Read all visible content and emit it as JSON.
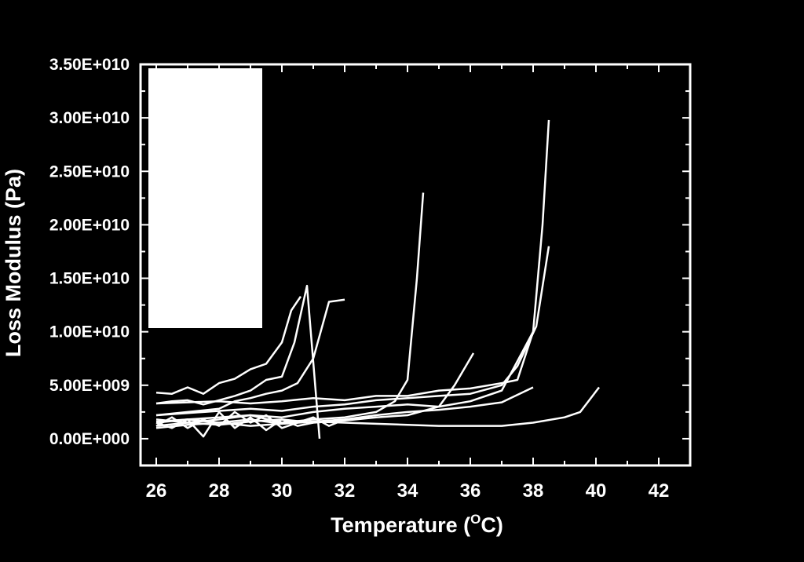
{
  "chart_data": {
    "type": "line",
    "title": "",
    "xlabel": "Temperature (",
    "xlabel_sup": "O",
    "xlabel_tail": "C)",
    "ylabel": "Loss Modulus (Pa)",
    "xlim": [
      25.5,
      43
    ],
    "ylim": [
      -2500000000,
      35000000000
    ],
    "xticks": [
      26,
      28,
      30,
      32,
      34,
      36,
      38,
      40,
      42
    ],
    "xtick_labels": [
      "26",
      "28",
      "30",
      "32",
      "34",
      "36",
      "38",
      "40",
      "42"
    ],
    "yticks": [
      0,
      5000000000,
      10000000000,
      15000000000,
      20000000000,
      25000000000,
      30000000000,
      35000000000
    ],
    "ytick_labels": [
      "0.00E+000",
      "5.00E+009",
      "1.00E+010",
      "1.50E+010",
      "2.00E+010",
      "2.50E+010",
      "3.00E+010",
      "3.50E+010"
    ],
    "grid": false,
    "legend": "top-left (blank box)",
    "colors": {
      "background": "#000000",
      "foreground": "#ffffff",
      "line": "#ffffff"
    },
    "series": [
      {
        "x": [
          26,
          26.5,
          27,
          27.5,
          28,
          28.5,
          29,
          29.5,
          30,
          30.3,
          30.6
        ],
        "y": [
          4300000000.0,
          4200000000.0,
          4800000000.0,
          4200000000.0,
          5200000000.0,
          5600000000.0,
          6500000000.0,
          7000000000.0,
          9000000000.0,
          12000000000.0,
          13300000000.0
        ]
      },
      {
        "x": [
          26,
          26.5,
          27,
          27.5,
          28,
          28.5,
          29,
          29.5,
          30,
          30.4,
          30.8,
          31.2
        ],
        "y": [
          3300000000.0,
          3500000000.0,
          3600000000.0,
          3200000000.0,
          3600000000.0,
          4000000000.0,
          4500000000.0,
          5500000000.0,
          5800000000.0,
          9000000000.0,
          14300000000.0,
          0.0
        ]
      },
      {
        "x": [
          26,
          27,
          28,
          28.5,
          29,
          29.5,
          30,
          30.5,
          31,
          31.5,
          32
        ],
        "y": [
          2200000000.0,
          2500000000.0,
          2800000000.0,
          3500000000.0,
          3800000000.0,
          4200000000.0,
          4500000000.0,
          5200000000.0,
          7500000000.0,
          12800000000.0,
          13000000000.0
        ]
      },
      {
        "x": [
          26,
          27,
          28,
          29,
          30,
          31,
          32,
          33,
          33.6,
          34,
          34.3,
          34.5
        ],
        "y": [
          1500000000.0,
          1800000000.0,
          2000000000.0,
          2200000000.0,
          1500000000.0,
          1800000000.0,
          2000000000.0,
          2500000000.0,
          3500000000.0,
          5500000000.0,
          15000000000.0,
          23000000000.0
        ]
      },
      {
        "x": [
          26,
          27,
          28,
          29,
          30,
          31,
          32,
          33,
          34,
          35,
          36,
          37,
          37.5,
          38,
          38.3,
          38.5
        ],
        "y": [
          3300000000.0,
          3400000000.0,
          3500000000.0,
          3300000000.0,
          3500000000.0,
          3800000000.0,
          3600000000.0,
          4000000000.0,
          4000000000.0,
          4500000000.0,
          4700000000.0,
          5200000000.0,
          5500000000.0,
          10000000000.0,
          20000000000.0,
          29800000000.0
        ]
      },
      {
        "x": [
          26,
          27,
          28,
          29,
          30,
          31,
          32,
          33,
          34,
          35,
          36,
          37,
          37.5,
          38.1,
          38.5
        ],
        "y": [
          2200000000.0,
          2400000000.0,
          2600000000.0,
          2800000000.0,
          2600000000.0,
          3000000000.0,
          3200000000.0,
          3600000000.0,
          3800000000.0,
          4000000000.0,
          4200000000.0,
          5000000000.0,
          6800000000.0,
          10500000000.0,
          18000000000.0
        ]
      },
      {
        "x": [
          26,
          27,
          28,
          29,
          30,
          31,
          32,
          33,
          34,
          35,
          36,
          37,
          38
        ],
        "y": [
          1200000000.0,
          1500000000.0,
          1800000000.0,
          2200000000.0,
          2000000000.0,
          2500000000.0,
          2800000000.0,
          3000000000.0,
          3200000000.0,
          3000000000.0,
          3500000000.0,
          4500000000.0,
          10000000000.0
        ]
      },
      {
        "x": [
          26,
          27,
          28,
          29,
          30,
          31,
          32,
          33,
          34,
          35,
          36,
          37,
          38
        ],
        "y": [
          1000000000.0,
          1300000000.0,
          1500000000.0,
          1200000000.0,
          1400000000.0,
          1600000000.0,
          1800000000.0,
          2200000000.0,
          2500000000.0,
          2700000000.0,
          3000000000.0,
          3400000000.0,
          4800000000.0
        ]
      },
      {
        "x": [
          26,
          27,
          28,
          29,
          30,
          31,
          32,
          33,
          34,
          35,
          35.5,
          36.1
        ],
        "y": [
          1800000000.0,
          1500000000.0,
          1300000000.0,
          1600000000.0,
          1800000000.0,
          1500000000.0,
          1700000000.0,
          2000000000.0,
          2200000000.0,
          3000000000.0,
          5000000000.0,
          8000000000.0
        ]
      },
      {
        "x": [
          26,
          27,
          28,
          29,
          30,
          31,
          32,
          33,
          34,
          35,
          36,
          37,
          38,
          39,
          39.5,
          40.1
        ],
        "y": [
          1600000000.0,
          1800000000.0,
          1500000000.0,
          1800000000.0,
          1400000000.0,
          1600000000.0,
          1500000000.0,
          1400000000.0,
          1300000000.0,
          1200000000.0,
          1200000000.0,
          1200000000.0,
          1500000000.0,
          2000000000.0,
          2500000000.0,
          4800000000.0
        ]
      },
      {
        "x": [
          26,
          26.5,
          27,
          27.5,
          28,
          28.5,
          29,
          29.5,
          30,
          30.5,
          31
        ],
        "y": [
          1500000000.0,
          1000000000.0,
          1800000000.0,
          200000000.0,
          2500000000.0,
          1000000000.0,
          2000000000.0,
          800000000.0,
          1800000000.0,
          1200000000.0,
          1500000000.0
        ]
      },
      {
        "x": [
          26,
          26.5,
          27,
          27.5,
          28,
          28.5,
          29,
          29.5,
          30,
          30.5,
          31,
          31.5,
          32
        ],
        "y": [
          1200000000.0,
          2000000000.0,
          1000000000.0,
          1800000000.0,
          1200000000.0,
          2500000000.0,
          1500000000.0,
          2200000000.0,
          1000000000.0,
          1500000000.0,
          2000000000.0,
          1200000000.0,
          1800000000.0
        ]
      }
    ]
  }
}
